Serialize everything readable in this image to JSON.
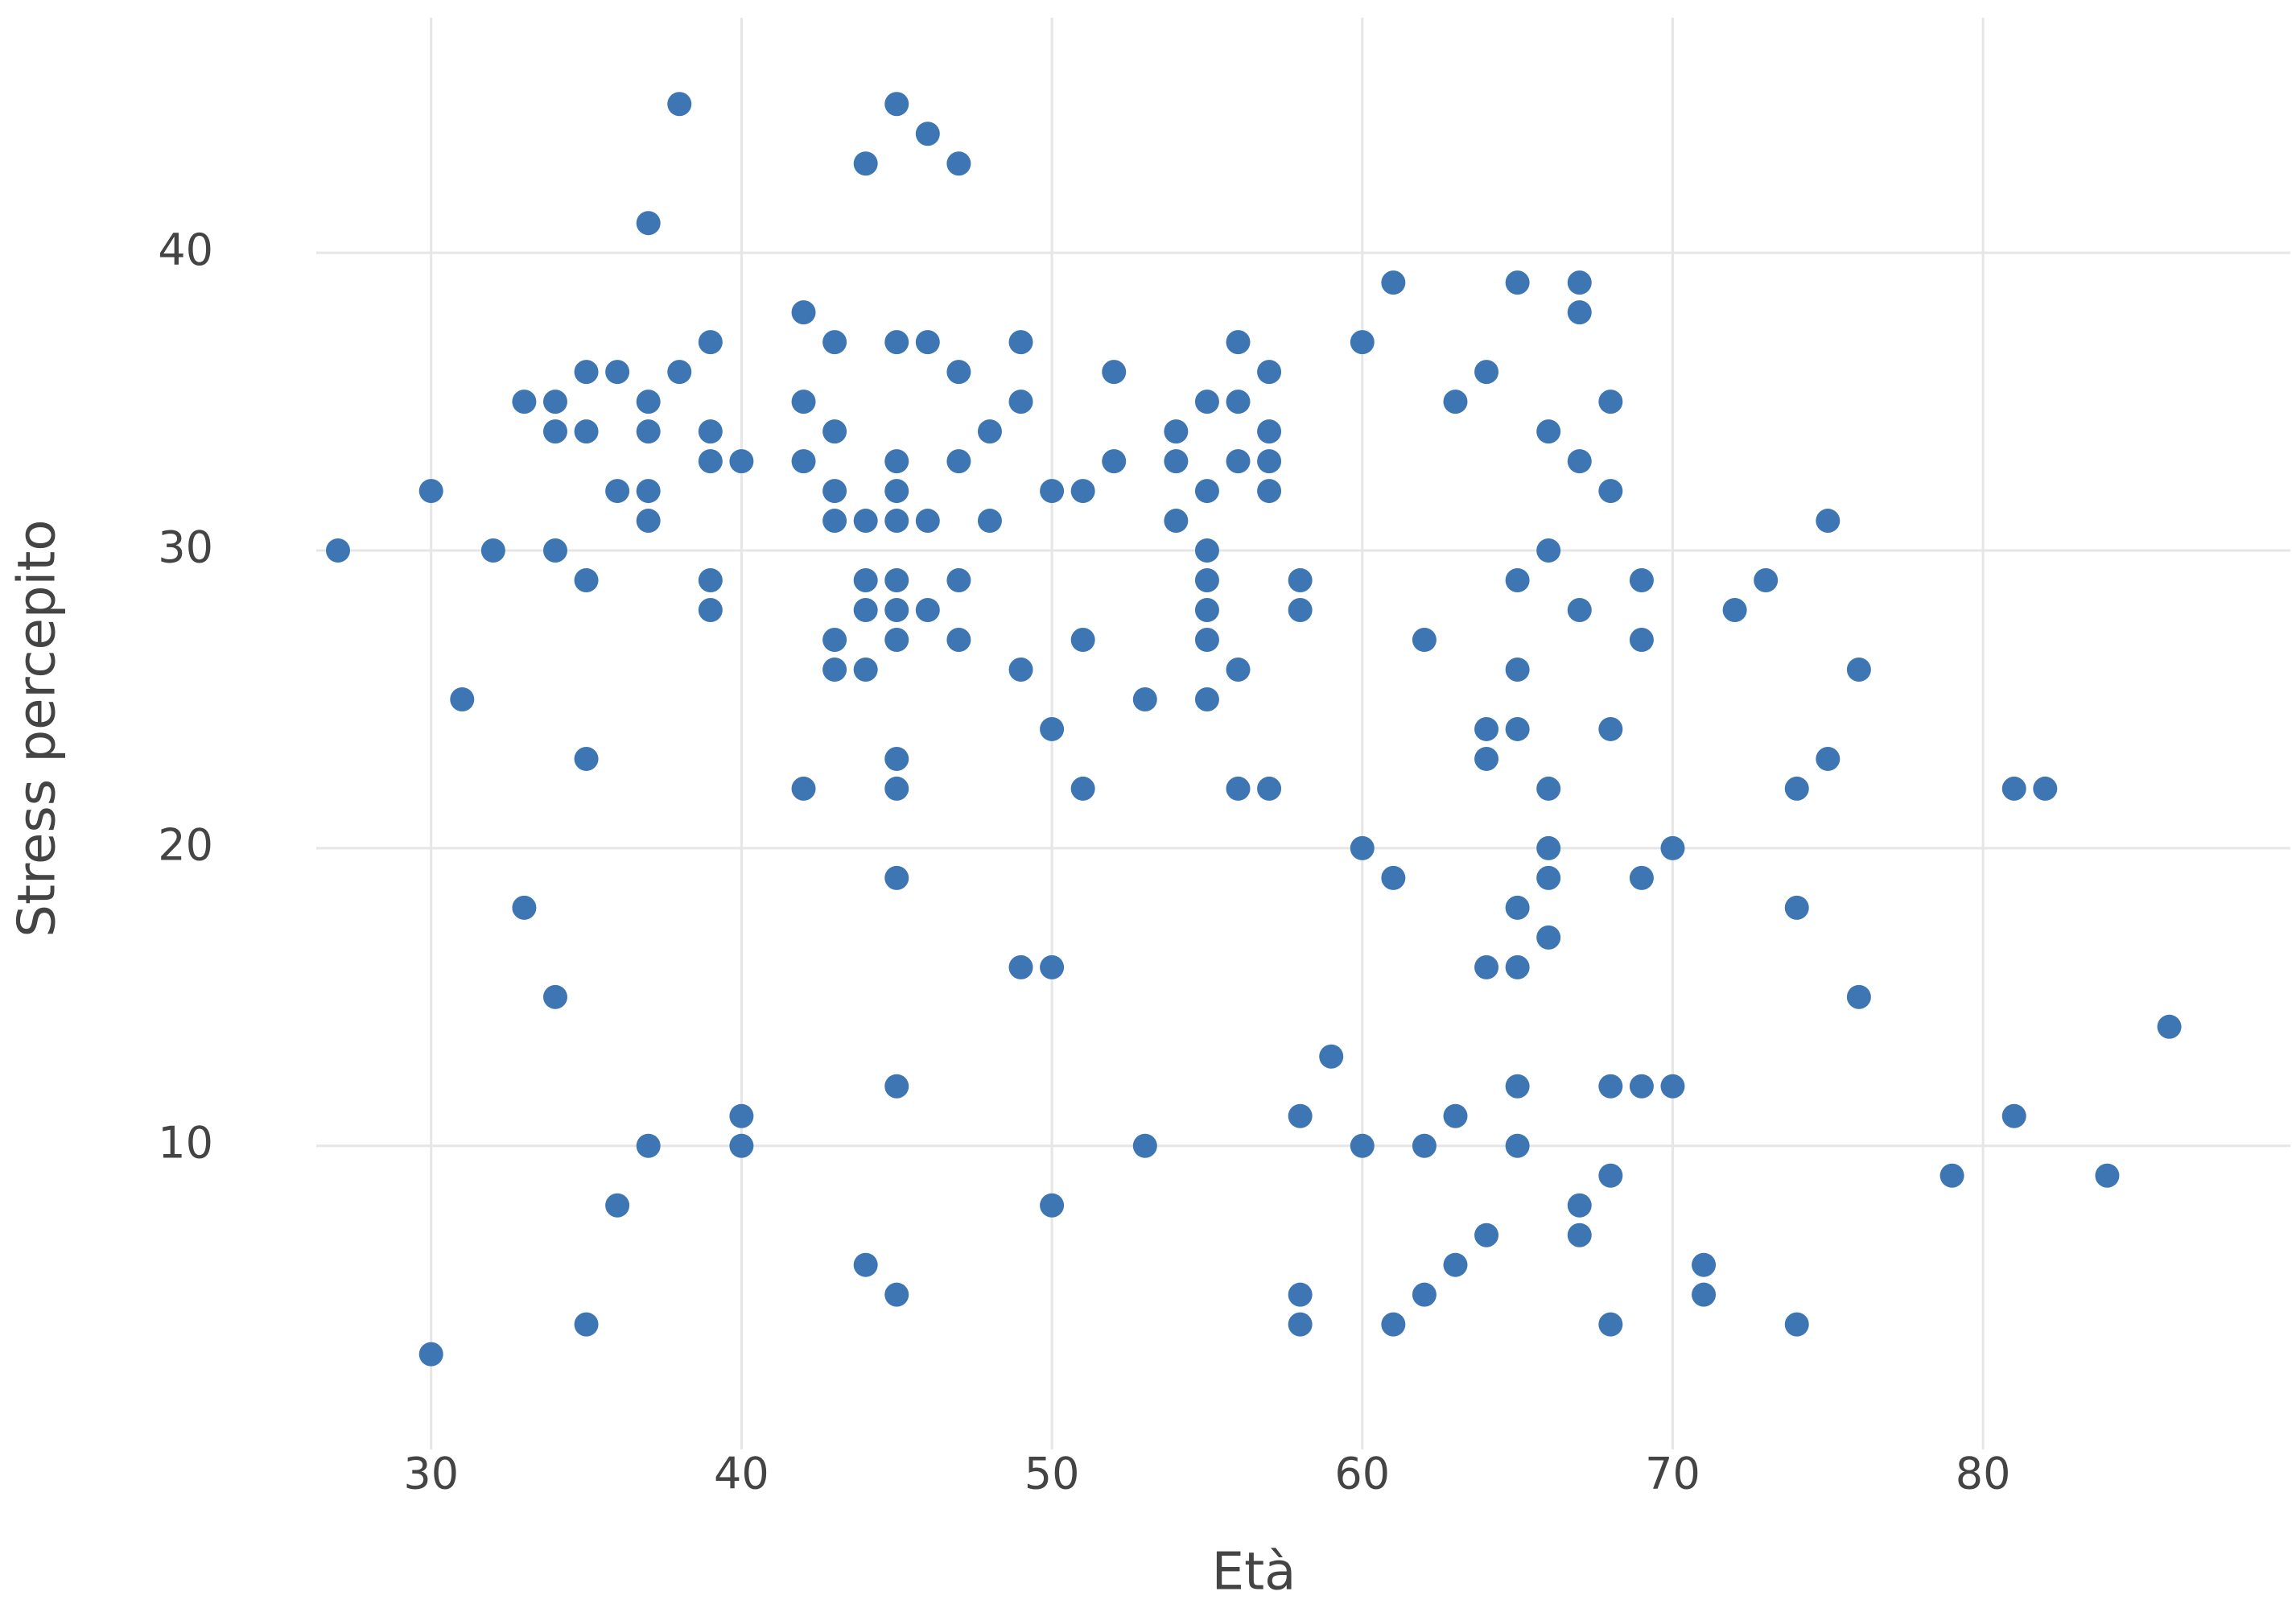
{
  "chart_data": {
    "type": "scatter",
    "x_label": "Età",
    "y_label": "Stress percepito",
    "color": "#3e76b4",
    "grid": true,
    "xlim": [
      26.3,
      89.9
    ],
    "ylim": [
      -0.2,
      47.9
    ],
    "xticks": [
      30,
      40,
      50,
      60,
      70,
      80
    ],
    "yticks": [
      10,
      20,
      30,
      40
    ],
    "x": [
      27,
      30,
      30,
      31,
      32,
      33,
      33,
      34,
      34,
      34,
      34,
      35,
      35,
      35,
      35,
      35,
      36,
      36,
      36,
      37,
      37,
      37,
      37,
      37,
      37,
      38,
      38,
      39,
      39,
      39,
      39,
      39,
      40,
      40,
      40,
      42,
      42,
      42,
      42,
      43,
      43,
      43,
      43,
      43,
      43,
      44,
      44,
      44,
      44,
      44,
      44,
      45,
      45,
      45,
      45,
      45,
      45,
      45,
      45,
      45,
      45,
      45,
      45,
      45,
      46,
      46,
      46,
      46,
      47,
      47,
      47,
      47,
      47,
      48,
      48,
      49,
      49,
      49,
      49,
      50,
      50,
      50,
      50,
      51,
      51,
      51,
      52,
      52,
      53,
      53,
      54,
      54,
      54,
      55,
      55,
      55,
      55,
      55,
      55,
      55,
      56,
      56,
      56,
      56,
      56,
      57,
      57,
      57,
      57,
      57,
      58,
      58,
      58,
      58,
      58,
      59,
      60,
      60,
      60,
      61,
      61,
      61,
      62,
      62,
      62,
      63,
      63,
      63,
      64,
      64,
      64,
      64,
      64,
      65,
      65,
      65,
      65,
      65,
      65,
      65,
      65,
      66,
      66,
      66,
      66,
      66,
      66,
      67,
      67,
      67,
      67,
      67,
      67,
      68,
      68,
      68,
      68,
      68,
      68,
      69,
      69,
      69,
      69,
      70,
      70,
      71,
      71,
      72,
      73,
      74,
      74,
      74,
      75,
      75,
      76,
      76,
      79,
      81,
      81,
      82,
      84,
      86
    ],
    "y": [
      30,
      32,
      3,
      25,
      30,
      35,
      18,
      35,
      34,
      30,
      15,
      36,
      34,
      29,
      23,
      4,
      36,
      32,
      8,
      41,
      35,
      34,
      32,
      31,
      10,
      45,
      36,
      37,
      34,
      33,
      29,
      28,
      33,
      11,
      10,
      38,
      35,
      33,
      22,
      37,
      34,
      32,
      31,
      27,
      26,
      43,
      31,
      29,
      28,
      26,
      6,
      45,
      37,
      33,
      32,
      31,
      29,
      28,
      27,
      23,
      22,
      19,
      12,
      5,
      44,
      37,
      31,
      28,
      43,
      36,
      33,
      29,
      27,
      34,
      31,
      37,
      35,
      26,
      16,
      32,
      24,
      16,
      8,
      32,
      27,
      22,
      36,
      33,
      25,
      10,
      34,
      33,
      31,
      35,
      32,
      30,
      29,
      28,
      27,
      25,
      37,
      35,
      33,
      26,
      22,
      36,
      34,
      33,
      32,
      22,
      29,
      28,
      11,
      5,
      4,
      13,
      37,
      20,
      10,
      39,
      19,
      4,
      27,
      10,
      5,
      35,
      11,
      6,
      36,
      24,
      23,
      16,
      7,
      39,
      29,
      26,
      24,
      18,
      16,
      12,
      10,
      34,
      30,
      22,
      20,
      19,
      17,
      39,
      38,
      33,
      28,
      8,
      7,
      35,
      32,
      24,
      12,
      9,
      4,
      29,
      27,
      19,
      12,
      20,
      12,
      6,
      5,
      28,
      29,
      22,
      18,
      4,
      31,
      23,
      26,
      15,
      9,
      22,
      11,
      22,
      9,
      14
    ]
  }
}
